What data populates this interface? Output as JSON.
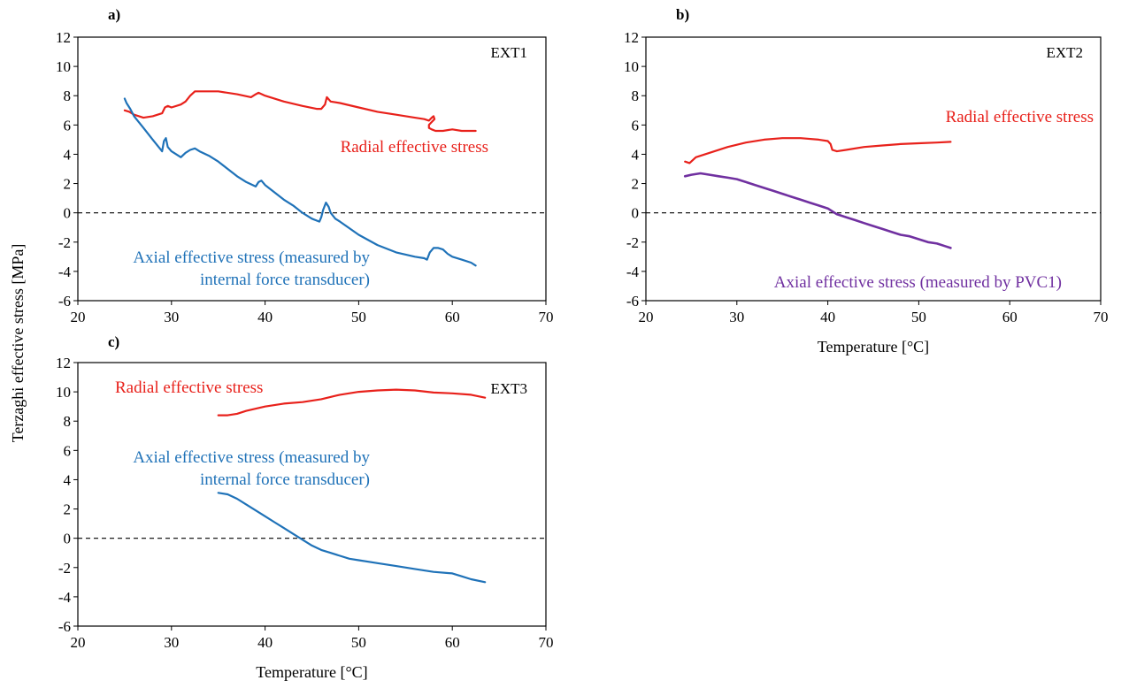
{
  "ylabel": "Terzaghi effective stress [MPa]",
  "colors": {
    "radial": "#e8211b",
    "axial_blue": "#1f72b8",
    "axial_purple": "#7030a0",
    "axis": "#000000",
    "zero_line": "#000000"
  },
  "chart_data": [
    {
      "type": "line",
      "panel_label": "a)",
      "tag": "EXT1",
      "xlabel": "",
      "xlim": [
        20,
        70
      ],
      "ylim": [
        -6,
        12
      ],
      "xticks": [
        "20",
        "30",
        "40",
        "50",
        "60",
        "70"
      ],
      "yticks": [
        "-6",
        "-4",
        "-2",
        "0",
        "2",
        "4",
        "6",
        "8",
        "10",
        "12"
      ],
      "zero_line": true,
      "annotations": [
        {
          "id": "radial",
          "lines": [
            "Radial effective stress"
          ],
          "color_key": "radial"
        },
        {
          "id": "axial",
          "lines": [
            "Axial effective stress (measured by",
            "internal force transducer)"
          ],
          "color_key": "axial_blue"
        }
      ],
      "series": [
        {
          "id": "radial",
          "color_key": "radial",
          "x": [
            25.0,
            25.5,
            26.0,
            27.0,
            28.0,
            29.0,
            29.3,
            29.6,
            30.0,
            31.0,
            31.5,
            32.0,
            32.5,
            33.5,
            35.0,
            37.0,
            38.5,
            39.0,
            39.3,
            40.0,
            42.0,
            44.0,
            45.5,
            46.0,
            46.4,
            46.6,
            47.0,
            48.0,
            50.0,
            52.0,
            54.0,
            56.0,
            57.0,
            57.5,
            57.8,
            58.0,
            58.1,
            57.8,
            57.5,
            57.5,
            57.8,
            58.2,
            59.0,
            60.0,
            61.0,
            62.0,
            62.5
          ],
          "y": [
            7.0,
            6.9,
            6.7,
            6.5,
            6.6,
            6.8,
            7.2,
            7.3,
            7.2,
            7.4,
            7.6,
            8.0,
            8.3,
            8.3,
            8.3,
            8.1,
            7.9,
            8.1,
            8.2,
            8.0,
            7.6,
            7.3,
            7.1,
            7.1,
            7.4,
            7.9,
            7.6,
            7.5,
            7.2,
            6.9,
            6.7,
            6.5,
            6.4,
            6.3,
            6.5,
            6.6,
            6.4,
            6.2,
            6.0,
            5.8,
            5.7,
            5.6,
            5.6,
            5.7,
            5.6,
            5.6,
            5.6
          ]
        },
        {
          "id": "axial",
          "color_key": "axial_blue",
          "x": [
            25.0,
            25.2,
            25.6,
            26.0,
            27.0,
            28.0,
            29.0,
            29.2,
            29.4,
            29.6,
            30.0,
            31.0,
            31.5,
            32.0,
            32.5,
            33.0,
            34.0,
            35.0,
            36.0,
            37.0,
            38.0,
            39.0,
            39.3,
            39.6,
            40.0,
            41.0,
            42.0,
            43.0,
            44.0,
            45.0,
            45.8,
            46.0,
            46.2,
            46.5,
            46.8,
            47.0,
            47.5,
            48.0,
            50.0,
            52.0,
            54.0,
            56.0,
            57.0,
            57.3,
            57.6,
            58.0,
            58.5,
            59.0,
            59.5,
            60.0,
            61.0,
            62.0,
            62.5
          ],
          "y": [
            7.8,
            7.5,
            7.1,
            6.6,
            5.8,
            5.0,
            4.2,
            4.9,
            5.1,
            4.5,
            4.2,
            3.8,
            4.1,
            4.3,
            4.4,
            4.2,
            3.9,
            3.5,
            3.0,
            2.5,
            2.1,
            1.8,
            2.1,
            2.2,
            1.9,
            1.4,
            0.9,
            0.5,
            0.0,
            -0.4,
            -0.6,
            -0.3,
            0.2,
            0.7,
            0.4,
            0.0,
            -0.4,
            -0.6,
            -1.5,
            -2.2,
            -2.7,
            -3.0,
            -3.1,
            -3.2,
            -2.7,
            -2.4,
            -2.4,
            -2.5,
            -2.8,
            -3.0,
            -3.2,
            -3.4,
            -3.6
          ]
        }
      ]
    },
    {
      "type": "line",
      "panel_label": "b)",
      "tag": "EXT2",
      "xlabel": "Temperature [°C]",
      "xlim": [
        20,
        70
      ],
      "ylim": [
        -6,
        12
      ],
      "xticks": [
        "20",
        "30",
        "40",
        "50",
        "60",
        "70"
      ],
      "yticks": [
        "-6",
        "-4",
        "-2",
        "0",
        "2",
        "4",
        "6",
        "8",
        "10",
        "12"
      ],
      "zero_line": true,
      "annotations": [
        {
          "id": "radial",
          "lines": [
            "Radial effective stress"
          ],
          "color_key": "radial"
        },
        {
          "id": "axial",
          "lines": [
            "Axial effective stress (measured by PVC1)"
          ],
          "color_key": "axial_purple"
        }
      ],
      "series": [
        {
          "id": "radial",
          "color_key": "radial",
          "x": [
            24.3,
            24.8,
            25.5,
            27.0,
            29.0,
            31.0,
            33.0,
            35.0,
            37.0,
            39.0,
            40.0,
            40.3,
            40.5,
            41.0,
            42.0,
            44.0,
            46.0,
            48.0,
            50.0,
            52.0,
            53.5
          ],
          "y": [
            3.5,
            3.4,
            3.8,
            4.1,
            4.5,
            4.8,
            5.0,
            5.1,
            5.1,
            5.0,
            4.9,
            4.7,
            4.3,
            4.2,
            4.3,
            4.5,
            4.6,
            4.7,
            4.75,
            4.8,
            4.85
          ]
        },
        {
          "id": "axial",
          "color_key": "axial_purple",
          "x": [
            24.3,
            25.0,
            26.0,
            27.0,
            28.0,
            29.0,
            30.0,
            31.0,
            32.0,
            33.0,
            34.0,
            35.0,
            36.0,
            37.0,
            38.0,
            39.0,
            40.0,
            40.5,
            41.0,
            42.0,
            43.0,
            44.0,
            45.0,
            46.0,
            47.0,
            48.0,
            49.0,
            50.0,
            51.0,
            52.0,
            53.0,
            53.5
          ],
          "y": [
            2.5,
            2.6,
            2.7,
            2.6,
            2.5,
            2.4,
            2.3,
            2.1,
            1.9,
            1.7,
            1.5,
            1.3,
            1.1,
            0.9,
            0.7,
            0.5,
            0.3,
            0.1,
            -0.1,
            -0.3,
            -0.5,
            -0.7,
            -0.9,
            -1.1,
            -1.3,
            -1.5,
            -1.6,
            -1.8,
            -2.0,
            -2.1,
            -2.3,
            -2.4
          ]
        }
      ]
    },
    {
      "type": "line",
      "panel_label": "c)",
      "tag": "EXT3",
      "xlabel": "Temperature [°C]",
      "xlim": [
        20,
        70
      ],
      "ylim": [
        -6,
        12
      ],
      "xticks": [
        "20",
        "30",
        "40",
        "50",
        "60",
        "70"
      ],
      "yticks": [
        "-6",
        "-4",
        "-2",
        "0",
        "2",
        "4",
        "6",
        "8",
        "10",
        "12"
      ],
      "zero_line": true,
      "annotations": [
        {
          "id": "radial",
          "lines": [
            "Radial effective stress"
          ],
          "color_key": "radial"
        },
        {
          "id": "axial",
          "lines": [
            "Axial effective stress (measured by",
            "internal force transducer)"
          ],
          "color_key": "axial_blue"
        }
      ],
      "series": [
        {
          "id": "radial",
          "color_key": "radial",
          "x": [
            35.0,
            36.0,
            37.0,
            38.0,
            40.0,
            42.0,
            44.0,
            46.0,
            48.0,
            50.0,
            52.0,
            54.0,
            56.0,
            58.0,
            60.0,
            62.0,
            63.5
          ],
          "y": [
            8.4,
            8.4,
            8.5,
            8.7,
            9.0,
            9.2,
            9.3,
            9.5,
            9.8,
            10.0,
            10.1,
            10.15,
            10.1,
            9.95,
            9.9,
            9.8,
            9.6
          ]
        },
        {
          "id": "axial",
          "color_key": "axial_blue",
          "x": [
            35.0,
            36.0,
            37.0,
            38.0,
            39.0,
            40.0,
            41.0,
            42.0,
            43.0,
            44.0,
            45.0,
            46.0,
            47.0,
            48.0,
            49.0,
            50.0,
            52.0,
            54.0,
            56.0,
            58.0,
            60.0,
            61.0,
            62.0,
            63.5
          ],
          "y": [
            3.1,
            3.0,
            2.7,
            2.3,
            1.9,
            1.5,
            1.1,
            0.7,
            0.3,
            -0.1,
            -0.5,
            -0.8,
            -1.0,
            -1.2,
            -1.4,
            -1.5,
            -1.7,
            -1.9,
            -2.1,
            -2.3,
            -2.4,
            -2.6,
            -2.8,
            -3.0
          ]
        }
      ]
    }
  ]
}
